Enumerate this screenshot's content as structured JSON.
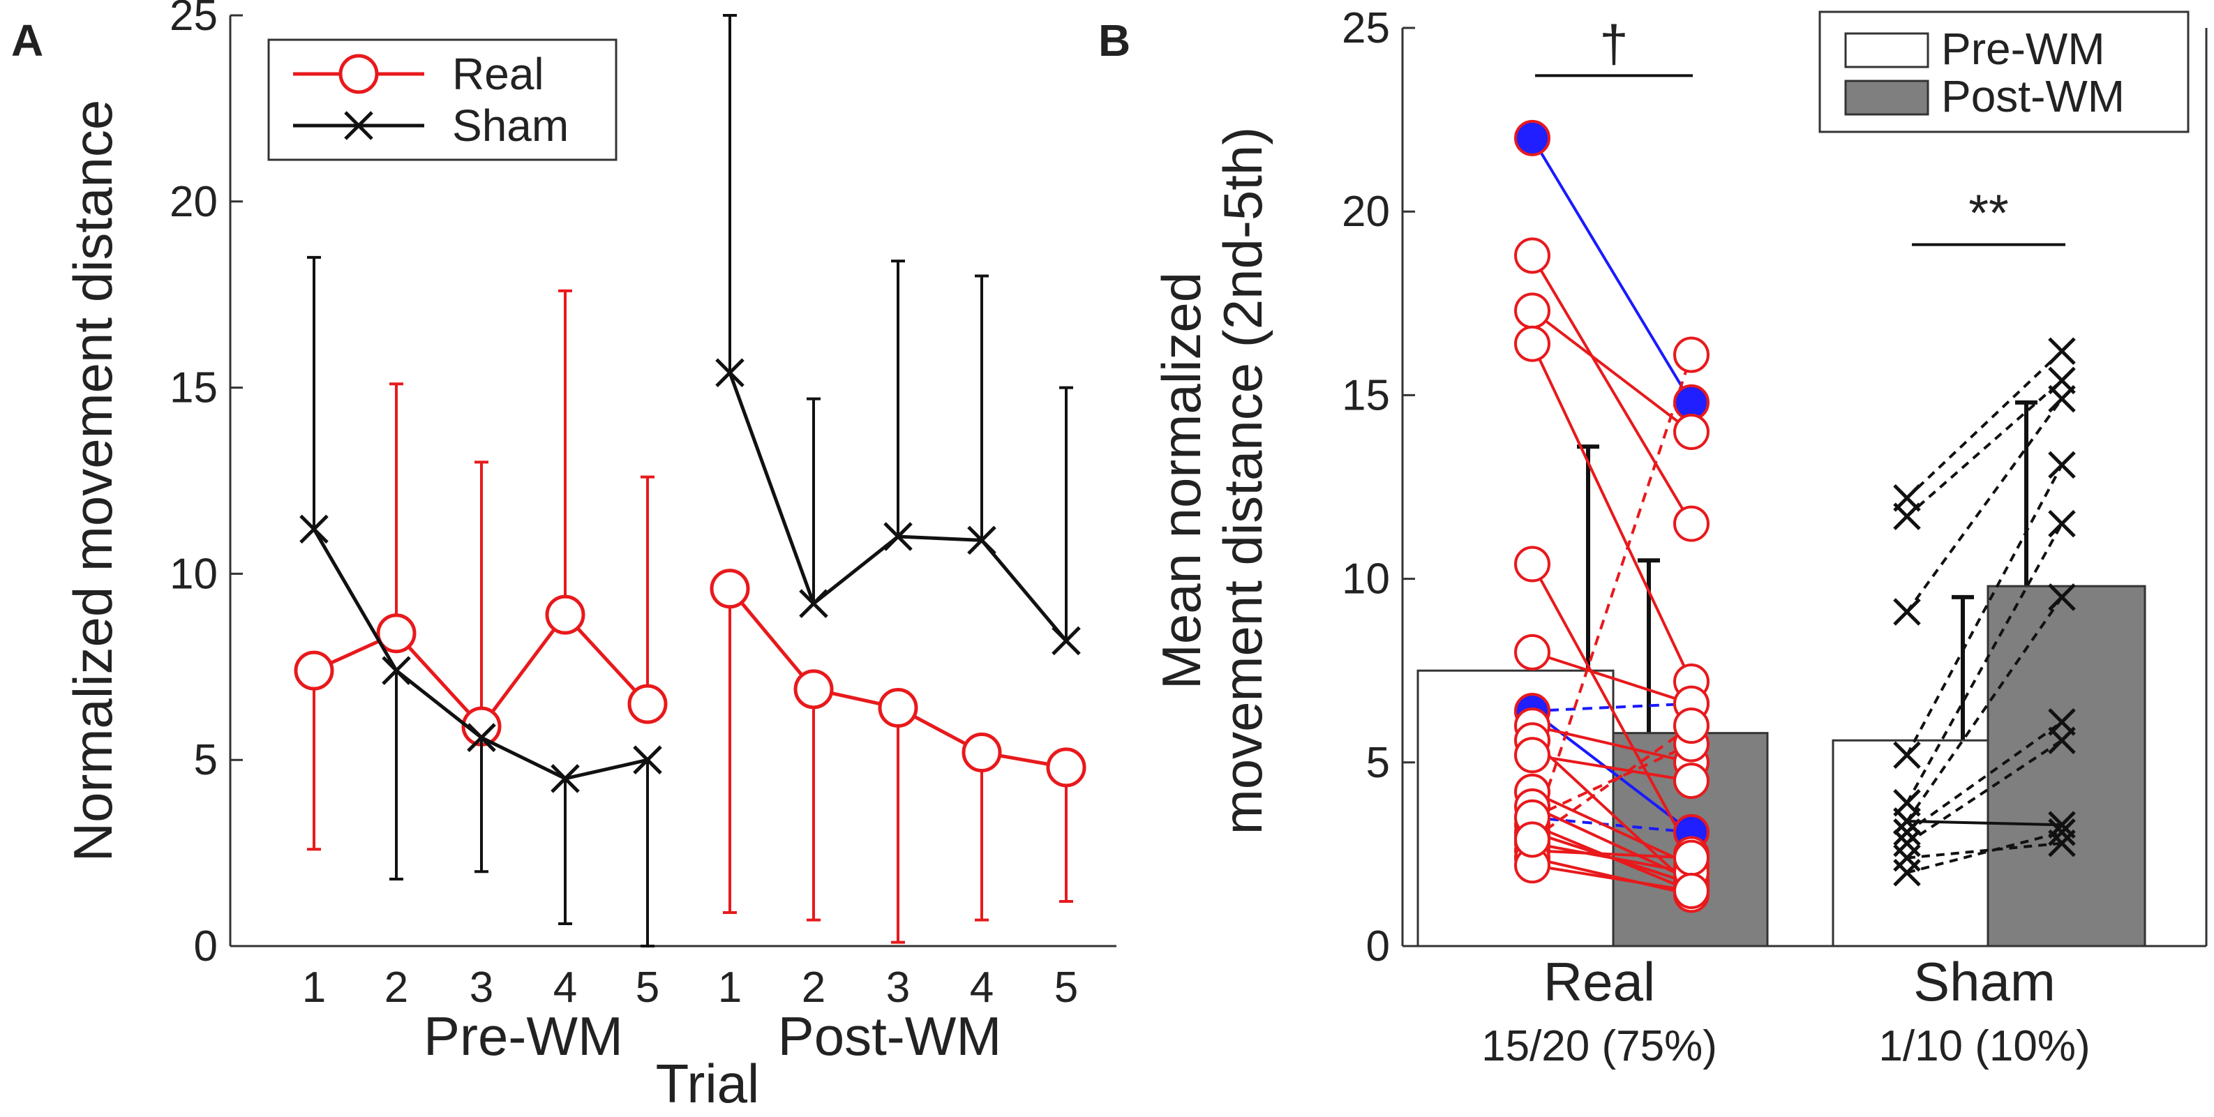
{
  "chart_data": [
    {
      "type": "line",
      "panel": "A",
      "xlabel": "Trial",
      "ylabel": "Normalized movement distance",
      "ylim": [
        0,
        25
      ],
      "yticks": [
        0,
        5,
        10,
        15,
        20,
        25
      ],
      "groups": [
        "Pre-WM",
        "Post-WM"
      ],
      "tick_labels": [
        "1",
        "2",
        "3",
        "4",
        "5"
      ],
      "legend": [
        "Real",
        "Sham"
      ],
      "legend_position": "top-left",
      "series": [
        {
          "name": "Real",
          "color": "#e8191c",
          "marker": "circle",
          "pre": {
            "mean": [
              7.4,
              8.4,
              5.9,
              8.9,
              6.5
            ],
            "upper": [
              7.4,
              15.1,
              13.0,
              17.6,
              12.6
            ],
            "lower": [
              2.6,
              8.4,
              5.9,
              8.9,
              6.5
            ]
          },
          "post": {
            "mean": [
              9.6,
              6.9,
              6.4,
              5.2,
              4.8
            ],
            "upper": [
              9.6,
              6.9,
              6.4,
              5.2,
              4.8
            ],
            "lower": [
              0.9,
              0.7,
              0.1,
              0.7,
              1.2
            ]
          }
        },
        {
          "name": "Sham",
          "color": "#111111",
          "marker": "x",
          "pre": {
            "mean": [
              11.2,
              7.4,
              5.6,
              4.5,
              5.0
            ],
            "upper": [
              18.5,
              7.4,
              5.6,
              4.5,
              5.0
            ],
            "lower": [
              11.2,
              1.8,
              2.0,
              0.6,
              0.0
            ]
          },
          "post": {
            "mean": [
              15.4,
              9.2,
              11.0,
              10.9,
              8.2
            ],
            "upper": [
              25.0,
              14.7,
              18.4,
              18.0,
              15.0
            ],
            "lower": [
              15.4,
              9.2,
              11.0,
              10.9,
              8.2
            ]
          }
        }
      ]
    },
    {
      "type": "bar",
      "panel": "B",
      "ylabel_lines": [
        "Mean normalized",
        "movement distance (2nd-5th)"
      ],
      "ylim": [
        0,
        25
      ],
      "yticks": [
        0,
        5,
        10,
        15,
        20,
        25
      ],
      "categories": [
        "Real",
        "Sham"
      ],
      "category_sublabels": [
        "15/20 (75%)",
        "1/10 (10%)"
      ],
      "legend": [
        "Pre-WM",
        "Post-WM"
      ],
      "legend_position": "top-right",
      "bar_colors": [
        "#ffffff",
        "#7f7f7f"
      ],
      "bars": [
        {
          "category": "Real",
          "pre": 7.5,
          "post": 5.8,
          "pre_err_upper": 13.6,
          "post_err_upper": 10.5
        },
        {
          "category": "Sham",
          "pre": 5.6,
          "post": 9.8,
          "pre_err_upper": 9.5,
          "post_err_upper": 14.8
        }
      ],
      "significance": [
        {
          "category": "Real",
          "symbol": "†",
          "y": 23.7
        },
        {
          "category": "Sham",
          "symbol": "**",
          "y": 19.1
        }
      ],
      "individual_pairs": {
        "Real": [
          {
            "pre": 22.0,
            "post": 14.8,
            "style": "blue"
          },
          {
            "pre": 6.4,
            "post": 3.1,
            "style": "blue"
          },
          {
            "pre": 6.4,
            "post": 6.6,
            "style": "blue-dashed"
          },
          {
            "pre": 3.5,
            "post": 3.1,
            "style": "blue-dashed"
          },
          {
            "pre": 18.8,
            "post": 11.5,
            "style": "red"
          },
          {
            "pre": 17.3,
            "post": 14.0,
            "style": "red"
          },
          {
            "pre": 16.4,
            "post": 7.2,
            "style": "red"
          },
          {
            "pre": 10.4,
            "post": 2.5,
            "style": "red"
          },
          {
            "pre": 8.0,
            "post": 6.6,
            "style": "red"
          },
          {
            "pre": 6.0,
            "post": 5.0,
            "style": "red"
          },
          {
            "pre": 5.6,
            "post": 1.6,
            "style": "red"
          },
          {
            "pre": 5.2,
            "post": 4.5,
            "style": "red"
          },
          {
            "pre": 4.2,
            "post": 2.2,
            "style": "red"
          },
          {
            "pre": 3.8,
            "post": 1.8,
            "style": "red"
          },
          {
            "pre": 3.3,
            "post": 1.5,
            "style": "red"
          },
          {
            "pre": 3.1,
            "post": 1.7,
            "style": "red"
          },
          {
            "pre": 2.8,
            "post": 2.0,
            "style": "red"
          },
          {
            "pre": 2.6,
            "post": 2.4,
            "style": "red"
          },
          {
            "pre": 2.4,
            "post": 1.4,
            "style": "red"
          },
          {
            "pre": 2.2,
            "post": 1.5,
            "style": "red"
          },
          {
            "pre": 3.0,
            "post": 16.1,
            "style": "red-dashed"
          },
          {
            "pre": 3.5,
            "post": 5.5,
            "style": "red-dashed"
          },
          {
            "pre": 2.9,
            "post": 6.0,
            "style": "red-dashed"
          }
        ],
        "Sham": [
          {
            "pre": 12.2,
            "post": 16.2,
            "style": "dashed"
          },
          {
            "pre": 11.7,
            "post": 15.4,
            "style": "dashed"
          },
          {
            "pre": 9.1,
            "post": 14.9,
            "style": "dashed"
          },
          {
            "pre": 5.2,
            "post": 13.1,
            "style": "dashed"
          },
          {
            "pre": 3.9,
            "post": 11.5,
            "style": "dashed"
          },
          {
            "pre": 3.4,
            "post": 9.5,
            "style": "dashed"
          },
          {
            "pre": 3.1,
            "post": 6.1,
            "style": "dashed"
          },
          {
            "pre": 2.8,
            "post": 5.6,
            "style": "dashed"
          },
          {
            "pre": 2.4,
            "post": 2.8,
            "style": "dashed"
          },
          {
            "pre": 3.4,
            "post": 3.3,
            "style": "solid"
          },
          {
            "pre": 2.0,
            "post": 3.1,
            "style": "dashed"
          }
        ]
      }
    }
  ]
}
